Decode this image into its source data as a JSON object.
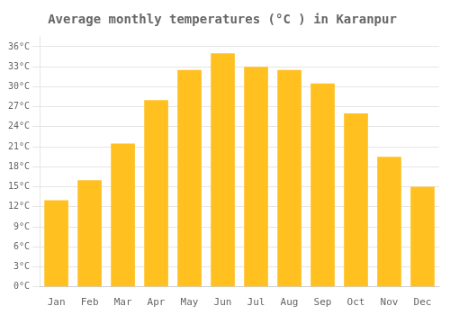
{
  "chart_data": {
    "type": "bar",
    "title": "Average monthly temperatures (°C ) in Karanpur",
    "categories": [
      "Jan",
      "Feb",
      "Mar",
      "Apr",
      "May",
      "Jun",
      "Jul",
      "Aug",
      "Sep",
      "Oct",
      "Nov",
      "Dec"
    ],
    "values": [
      13,
      16,
      21.5,
      28,
      32.5,
      35,
      33,
      32.5,
      30.5,
      26,
      19.5,
      15
    ],
    "color": "#FFC020",
    "ylim": [
      0,
      37.5
    ],
    "yticks": [
      {
        "value": 0,
        "label": "0°C"
      },
      {
        "value": 3,
        "label": "3°C"
      },
      {
        "value": 6,
        "label": "6°C"
      },
      {
        "value": 9,
        "label": "9°C"
      },
      {
        "value": 12,
        "label": "12°C"
      },
      {
        "value": 15,
        "label": "15°C"
      },
      {
        "value": 18,
        "label": "18°C"
      },
      {
        "value": 21,
        "label": "21°C"
      },
      {
        "value": 24,
        "label": "24°C"
      },
      {
        "value": 27,
        "label": "27°C"
      },
      {
        "value": 30,
        "label": "30°C"
      },
      {
        "value": 33,
        "label": "33°C"
      },
      {
        "value": 36,
        "label": "36°C"
      }
    ],
    "grid": true
  }
}
